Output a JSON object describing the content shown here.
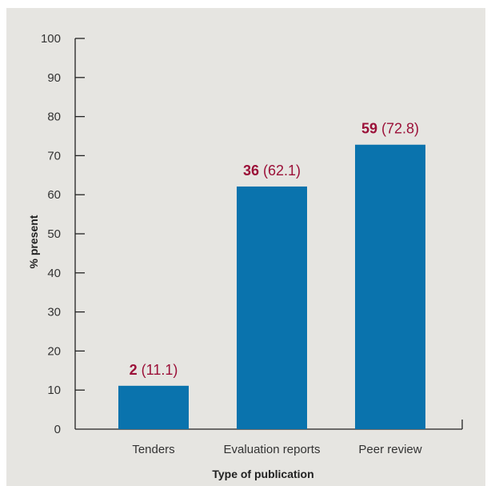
{
  "chart_data": {
    "type": "bar",
    "categories": [
      "Tenders",
      "Evaluation reports",
      "Peer review"
    ],
    "values": [
      11.1,
      62.1,
      72.8
    ],
    "counts": [
      "2",
      "36",
      "59"
    ],
    "percent_labels": [
      "(11.1)",
      "(62.1)",
      "(72.8)"
    ],
    "title": "",
    "xlabel": "Type of publication",
    "ylabel": "% present",
    "ylim": [
      0,
      100
    ],
    "yticks": [
      0,
      10,
      20,
      30,
      40,
      50,
      60,
      70,
      80,
      90,
      100
    ],
    "grid": false,
    "bar_color": "#0a73ad",
    "label_color": "#9b1038",
    "background_color": "#e6e5e1"
  }
}
